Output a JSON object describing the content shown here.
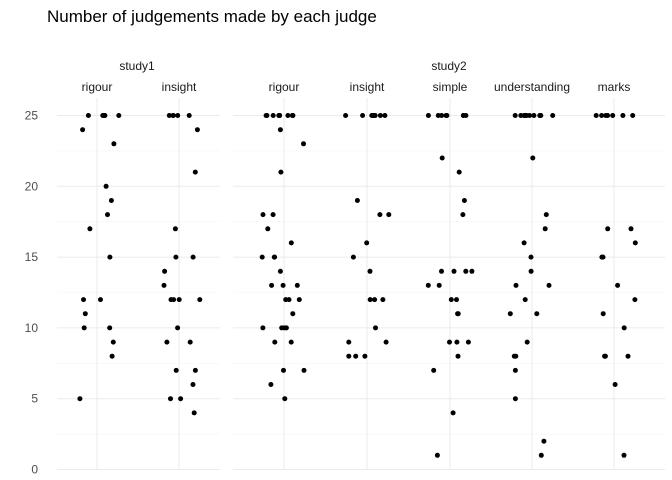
{
  "chart_data": {
    "type": "scatter",
    "title": "Number of judgements made by each judge",
    "xlabel": "",
    "ylabel": "",
    "ylim": [
      0,
      25
    ],
    "yticks": [
      0,
      5,
      10,
      15,
      20,
      25
    ],
    "grid": true,
    "studies": [
      {
        "name": "study1",
        "panels": [
          {
            "name": "rigour",
            "values": [
              25,
              25,
              25,
              25,
              25,
              25,
              24,
              23,
              20,
              19,
              18,
              17,
              15,
              12,
              12,
              11,
              10,
              10,
              9,
              8,
              5
            ]
          },
          {
            "name": "insight",
            "values": [
              25,
              25,
              25,
              25,
              25,
              24,
              21,
              17,
              15,
              15,
              14,
              13,
              12,
              12,
              12,
              12,
              10,
              9,
              9,
              7,
              7,
              6,
              5,
              5,
              4
            ]
          }
        ]
      },
      {
        "name": "study2",
        "panels": [
          {
            "name": "rigour",
            "values": [
              25,
              25,
              25,
              25,
              25,
              25,
              25,
              25,
              25,
              25,
              24,
              23,
              21,
              18,
              18,
              17,
              16,
              15,
              15,
              15,
              14,
              13,
              13,
              13,
              12,
              12,
              12,
              11,
              10,
              10,
              10,
              10,
              9,
              9,
              7,
              7,
              6,
              5
            ]
          },
          {
            "name": "insight",
            "values": [
              25,
              25,
              25,
              25,
              25,
              25,
              25,
              25,
              19,
              18,
              18,
              16,
              15,
              14,
              12,
              12,
              12,
              10,
              9,
              9,
              8,
              8,
              8
            ]
          },
          {
            "name": "simple",
            "values": [
              25,
              25,
              25,
              25,
              25,
              25,
              25,
              25,
              22,
              21,
              19,
              18,
              14,
              14,
              14,
              14,
              13,
              13,
              12,
              12,
              11,
              11,
              9,
              9,
              9,
              8,
              7,
              4,
              1
            ]
          },
          {
            "name": "understanding",
            "values": [
              25,
              25,
              25,
              25,
              25,
              25,
              25,
              25,
              25,
              25,
              25,
              25,
              22,
              18,
              17,
              16,
              15,
              14,
              13,
              13,
              12,
              11,
              11,
              9,
              8,
              8,
              7,
              5,
              2,
              1
            ]
          },
          {
            "name": "marks",
            "values": [
              25,
              25,
              25,
              25,
              25,
              25,
              25,
              17,
              17,
              16,
              15,
              15,
              13,
              12,
              11,
              10,
              8,
              8,
              8,
              6,
              1
            ]
          }
        ]
      }
    ]
  }
}
